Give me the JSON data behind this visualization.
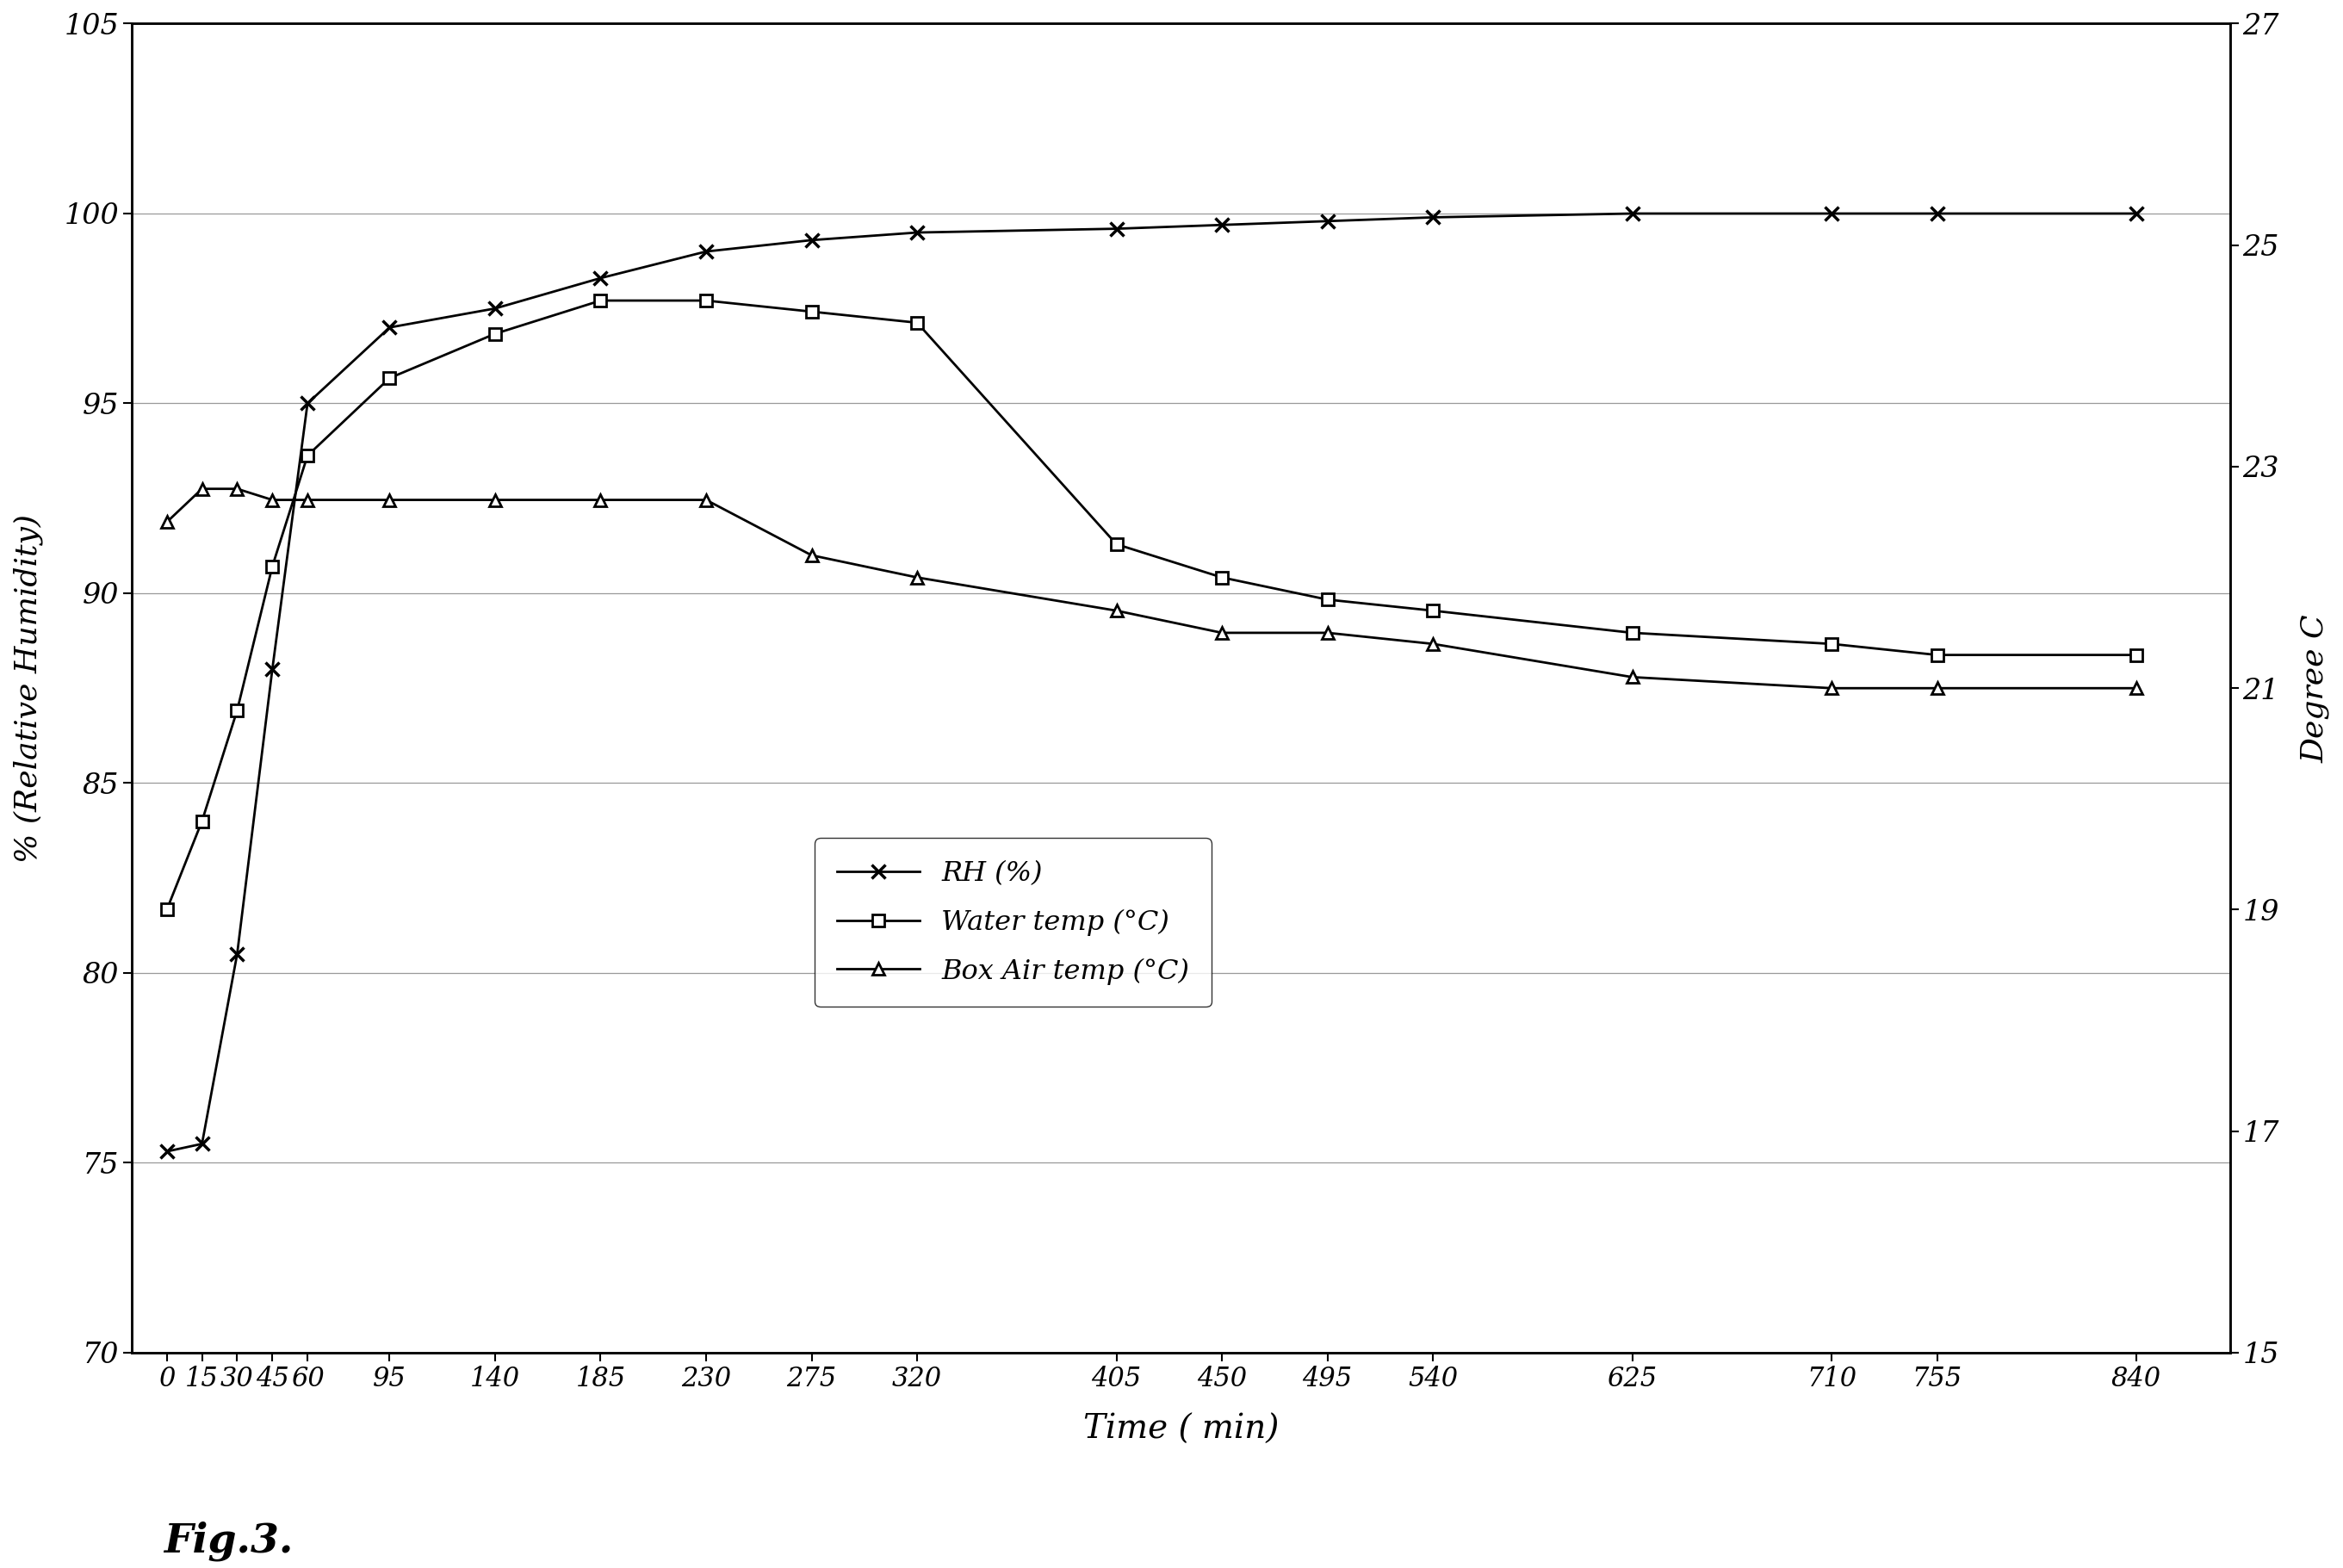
{
  "time_x_rh": [
    0,
    15,
    30,
    45,
    60,
    95,
    140,
    185,
    230,
    275,
    320,
    405,
    450,
    495,
    540,
    625,
    710,
    755,
    840
  ],
  "rh_y": [
    75.3,
    75.5,
    80.5,
    88.0,
    95.0,
    97.0,
    97.5,
    98.3,
    99.0,
    99.3,
    99.5,
    99.6,
    99.7,
    99.8,
    99.9,
    100.0,
    100.0,
    100.0,
    100.0
  ],
  "time_x_water": [
    0,
    15,
    30,
    45,
    60,
    95,
    140,
    185,
    230,
    275,
    320,
    405,
    450,
    495,
    540,
    625,
    710,
    755,
    840
  ],
  "water_temp_y": [
    19.0,
    19.8,
    20.8,
    22.1,
    23.1,
    23.8,
    24.2,
    24.5,
    24.5,
    24.4,
    24.3,
    22.3,
    22.0,
    21.8,
    21.7,
    21.5,
    21.4,
    21.3,
    21.3
  ],
  "time_x_box": [
    0,
    15,
    30,
    45,
    60,
    95,
    140,
    185,
    230,
    275,
    320,
    405,
    450,
    495,
    540,
    625,
    710,
    755,
    840
  ],
  "box_air_y": [
    22.5,
    22.8,
    22.8,
    22.7,
    22.7,
    22.7,
    22.7,
    22.7,
    22.7,
    22.2,
    22.0,
    21.7,
    21.5,
    21.5,
    21.4,
    21.1,
    21.0,
    21.0,
    21.0
  ],
  "time_x_all": [
    0,
    15,
    30,
    45,
    60,
    95,
    140,
    185,
    230,
    275,
    320,
    405,
    450,
    495,
    540,
    625,
    710,
    755,
    840
  ],
  "xtick_labels": [
    "0",
    "15",
    "30",
    "45",
    "60",
    "95",
    "140",
    "185",
    "230",
    "275",
    "320",
    "405",
    "450",
    "495",
    "540",
    "625",
    "710",
    "755",
    "840"
  ],
  "xlabel": "Time ( min)",
  "ylabel_left": "% (Relative Humidity)",
  "ylabel_right": "Degree C",
  "ylim_left": [
    70,
    105
  ],
  "ylim_right": [
    15,
    27
  ],
  "yticks_left": [
    70,
    75,
    80,
    85,
    90,
    95,
    100,
    105
  ],
  "yticks_right": [
    15,
    17,
    19,
    21,
    23,
    25,
    27
  ],
  "legend_labels": [
    "RH (%)",
    "Water temp (°C)",
    "Box Air temp (°C)"
  ],
  "fig_caption": "Fig.3.",
  "background_color": "#ffffff",
  "line_color": "#000000",
  "grid_color": "#999999"
}
